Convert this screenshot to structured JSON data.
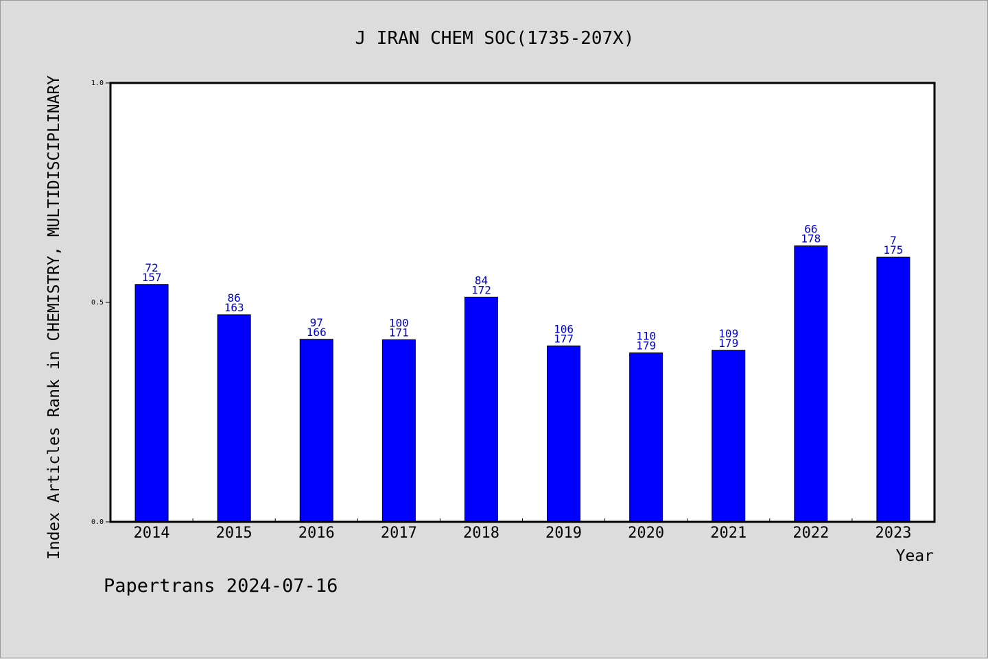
{
  "chart_data": {
    "type": "bar",
    "title": "J IRAN CHEM SOC(1735-207X)",
    "xlabel": "Year",
    "ylabel": "Index Articles Rank in CHEMISTRY, MULTIDISCIPLINARY",
    "ylim": [
      0.0,
      1.0
    ],
    "yticks": [
      "0.0",
      "0.5",
      "1.0"
    ],
    "grid": false,
    "bar_color": "#0000ff",
    "label_color": "#0000cc",
    "categories": [
      "2014",
      "2015",
      "2016",
      "2017",
      "2018",
      "2019",
      "2020",
      "2021",
      "2022",
      "2023"
    ],
    "values": [
      0.541,
      0.472,
      0.416,
      0.415,
      0.512,
      0.401,
      0.385,
      0.391,
      0.629,
      0.603
    ],
    "ranks": [
      "72",
      "86",
      "97",
      "100",
      "84",
      "106",
      "110",
      "109",
      "66",
      "7"
    ],
    "totals": [
      "157",
      "163",
      "166",
      "171",
      "172",
      "177",
      "179",
      "179",
      "178",
      "175"
    ]
  },
  "footer": "Papertrans 2024-07-16"
}
